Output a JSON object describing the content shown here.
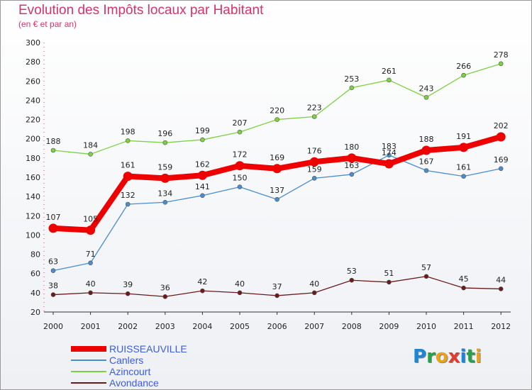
{
  "title": "Evolution des Impôts locaux par Habitant",
  "subtitle": "(en € et par an)",
  "logo": {
    "text": "Proxiti",
    "letters": [
      {
        "ch": "P",
        "color": "#1a86d8"
      },
      {
        "ch": "r",
        "color": "#27a24a"
      },
      {
        "ch": "o",
        "color": "#e8a31a"
      },
      {
        "ch": "x",
        "color": "#e23b2e"
      },
      {
        "ch": "i",
        "color": "#1a86d8"
      },
      {
        "ch": "t",
        "color": "#27a24a"
      },
      {
        "ch": "i",
        "color": "#e8a31a"
      }
    ]
  },
  "chart_data": {
    "type": "line",
    "x": [
      "2000",
      "2001",
      "2002",
      "2003",
      "2004",
      "2005",
      "2006",
      "2007",
      "2008",
      "2009",
      "2010",
      "2011",
      "2012"
    ],
    "ylim": [
      20,
      300
    ],
    "yticks": [
      20,
      40,
      60,
      80,
      100,
      120,
      140,
      160,
      180,
      200,
      220,
      240,
      260,
      280,
      300
    ],
    "grid": false,
    "legend_position": "bottom-left",
    "series": [
      {
        "name": "Azincourt",
        "color": "#7bd13f",
        "style": "thin",
        "values": [
          188,
          184,
          198,
          196,
          199,
          207,
          220,
          223,
          253,
          261,
          243,
          266,
          278
        ]
      },
      {
        "name": "Canlers",
        "color": "#4a8dcb",
        "style": "thin",
        "values": [
          63,
          71,
          132,
          134,
          141,
          150,
          137,
          159,
          163,
          183,
          167,
          161,
          169
        ]
      },
      {
        "name": "Avondance",
        "color": "#6b1a1a",
        "style": "thin",
        "values": [
          38,
          40,
          39,
          36,
          42,
          40,
          37,
          40,
          53,
          51,
          57,
          45,
          44
        ]
      },
      {
        "name": "RUISSEAUVILLE",
        "color": "#ee0000",
        "style": "thick",
        "values": [
          107,
          105,
          161,
          159,
          162,
          172,
          169,
          176,
          180,
          174,
          188,
          191,
          202
        ]
      }
    ],
    "labels": [
      {
        "series": "Azincourt",
        "text": [
          "188",
          "184",
          "198",
          "196",
          "199",
          "207",
          "220",
          "223",
          "253",
          "261",
          "243",
          "266",
          "278"
        ]
      },
      {
        "series": "Canlers",
        "text": [
          "63",
          "71",
          "132",
          "134",
          "141",
          "150",
          "137",
          "159",
          "163",
          "183",
          "167",
          "161",
          "169"
        ]
      },
      {
        "series": "Avondance",
        "text": [
          "38",
          "40",
          "39",
          "36",
          "42",
          "40",
          "37",
          "40",
          "53",
          "51",
          "57",
          "45",
          "44"
        ]
      },
      {
        "series": "RUISSEAUVILLE",
        "text": [
          "107",
          "105",
          "161",
          "159",
          "162",
          "172",
          "169",
          "176",
          "180",
          "174",
          "188",
          "191",
          "202"
        ]
      }
    ]
  },
  "legend": [
    {
      "name": "RUISSEAUVILLE",
      "color": "#ee0000",
      "thick": true
    },
    {
      "name": "Canlers",
      "color": "#4a8dcb",
      "thick": false
    },
    {
      "name": "Azincourt",
      "color": "#7bd13f",
      "thick": false
    },
    {
      "name": "Avondance",
      "color": "#6b1a1a",
      "thick": false
    }
  ]
}
